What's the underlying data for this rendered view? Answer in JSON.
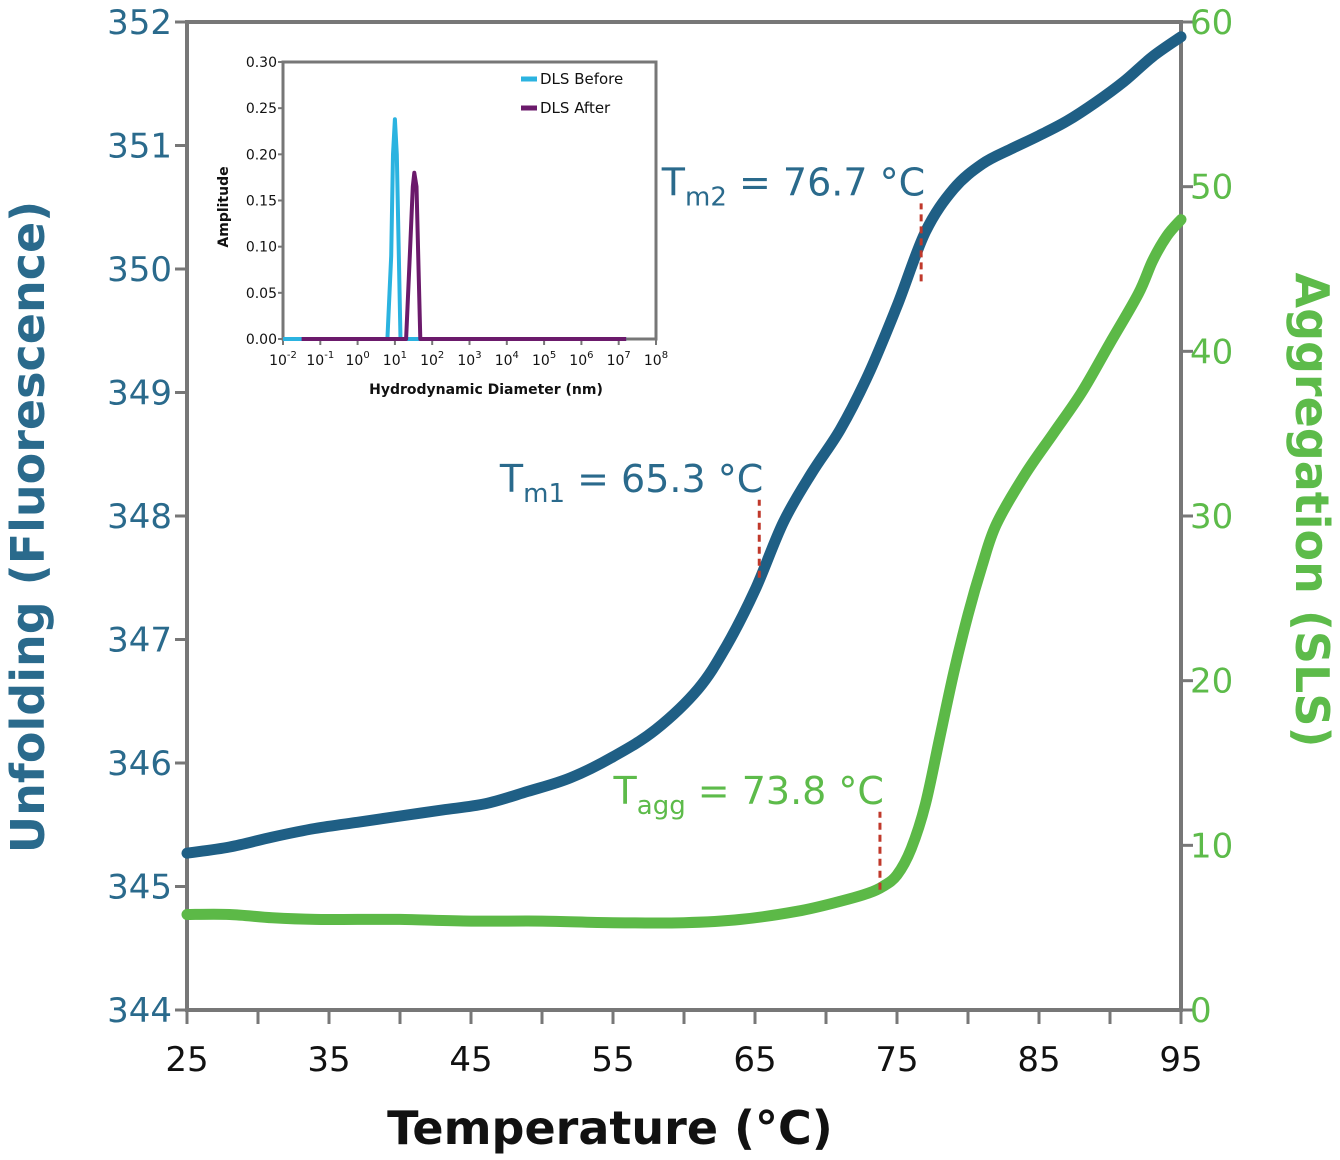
{
  "colors": {
    "fluorescence": "#1f5f85",
    "fluorescence_axis": "#2a6a8c",
    "sls": "#5cb947",
    "sls_axis": "#5dbb4a",
    "marker": "#c0392b",
    "frame": "#777777",
    "dls_before": "#2bb3e0",
    "dls_after": "#6b1a6b"
  },
  "chart_data": [
    {
      "type": "line",
      "x_axis": {
        "label": "Temperature (°C)",
        "range": [
          25,
          95
        ],
        "ticks": [
          25,
          35,
          45,
          55,
          65,
          75,
          85,
          95
        ]
      },
      "left_axis": {
        "label": "Unfolding (Fluorescence)",
        "range": [
          344,
          352
        ],
        "ticks": [
          344,
          345,
          346,
          347,
          348,
          349,
          350,
          351,
          352
        ]
      },
      "right_axis": {
        "label": "Aggregation (SLS)",
        "range": [
          0,
          60
        ],
        "ticks": [
          0,
          10,
          20,
          30,
          40,
          50,
          60
        ]
      },
      "series": [
        {
          "name": "Unfolding (Fluorescence)",
          "axis": "left",
          "x": [
            25,
            28,
            31,
            34,
            37,
            40,
            43,
            46,
            49,
            52,
            55,
            58,
            61,
            63,
            65,
            67,
            69,
            71,
            73,
            75,
            77,
            79,
            81,
            83,
            85,
            87,
            89,
            91,
            93,
            95
          ],
          "y": [
            345.27,
            345.32,
            345.4,
            345.47,
            345.52,
            345.57,
            345.62,
            345.67,
            345.77,
            345.88,
            346.05,
            346.27,
            346.6,
            346.95,
            347.4,
            347.95,
            348.35,
            348.7,
            349.15,
            349.7,
            350.3,
            350.65,
            350.85,
            350.97,
            351.08,
            351.2,
            351.35,
            351.52,
            351.72,
            351.88
          ]
        },
        {
          "name": "Aggregation (SLS)",
          "axis": "right",
          "x": [
            25,
            28,
            31,
            34,
            37,
            40,
            45,
            50,
            55,
            60,
            64,
            68,
            71,
            73,
            74,
            75,
            76,
            77,
            78,
            79,
            80,
            81,
            82,
            84,
            86,
            88,
            90,
            92,
            93,
            94,
            95
          ],
          "y": [
            5.8,
            5.8,
            5.6,
            5.5,
            5.5,
            5.5,
            5.4,
            5.4,
            5.3,
            5.3,
            5.5,
            6.0,
            6.6,
            7.1,
            7.5,
            8.2,
            9.8,
            12.5,
            16.5,
            20.5,
            24.0,
            27.0,
            29.5,
            32.5,
            35.0,
            37.5,
            40.5,
            43.5,
            45.5,
            47.0,
            48.0
          ]
        }
      ],
      "annotations": [
        {
          "label": "T",
          "sub": "m2",
          "text": " = 76.7 °C",
          "x": 76.7,
          "series": "Unfolding (Fluorescence)",
          "y": 349.9
        },
        {
          "label": "T",
          "sub": "m1",
          "text": " = 65.3 °C",
          "x": 65.3,
          "series": "Unfolding (Fluorescence)",
          "y": 347.5
        },
        {
          "label": "T",
          "sub": "agg",
          "text": " = 73.8 °C",
          "x": 73.8,
          "series": "Aggregation (SLS)",
          "y": 7.3
        }
      ]
    },
    {
      "type": "line",
      "title": "inset",
      "x_axis": {
        "label": "Hydrodynamic Diameter (nm)",
        "scale": "log",
        "range_exp": [
          -2,
          8
        ],
        "tick_exponents": [
          -2,
          -1,
          0,
          1,
          2,
          3,
          4,
          5,
          6,
          7,
          8
        ]
      },
      "y_axis": {
        "label": "Amplitude",
        "range": [
          0,
          0.3
        ],
        "ticks": [
          "0.00",
          "0.05",
          "0.10",
          "0.15",
          "0.20",
          "0.25",
          "0.30"
        ]
      },
      "legend": {
        "position": "top-right",
        "entries": [
          "DLS Before",
          "DLS After"
        ]
      },
      "series": [
        {
          "name": "DLS Before",
          "log_x": [
            -2,
            -1.5,
            0.8,
            0.9,
            0.95,
            1.0,
            1.05,
            1.15,
            7.2
          ],
          "y": [
            0.0,
            0.0,
            0.0,
            0.09,
            0.2,
            0.238,
            0.2,
            0.0,
            0.0
          ]
        },
        {
          "name": "DLS After",
          "log_x": [
            -1.5,
            1.3,
            1.4,
            1.48,
            1.52,
            1.58,
            1.68,
            7.2
          ],
          "y": [
            0.0,
            0.0,
            0.09,
            0.165,
            0.18,
            0.165,
            0.0,
            0.0
          ]
        }
      ]
    }
  ]
}
